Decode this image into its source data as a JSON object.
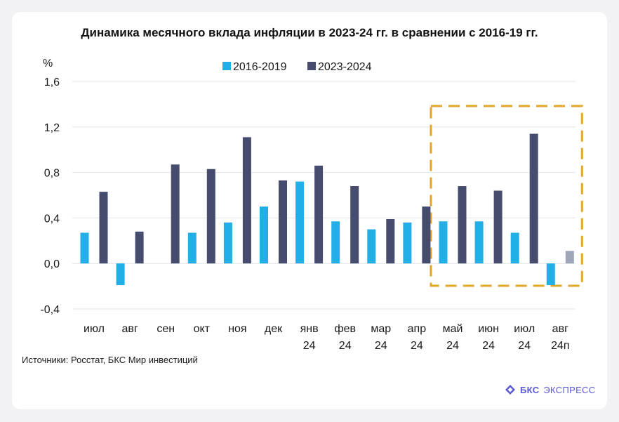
{
  "brand": {
    "name": "БКС",
    "suffix": "ЭКСПРЕСС"
  },
  "source": "Источники: Росстат, БКС Мир инвестиций",
  "chart_data": {
    "type": "bar",
    "title": "Динамика месячного вклада инфляции в 2023-24 гг. в сравнении с 2016-19 гг.",
    "ylabel": "%",
    "ylim": [
      -0.4,
      1.6
    ],
    "yticks": [
      1.6,
      1.2,
      0.8,
      0.4,
      0.0,
      -0.4
    ],
    "ytick_labels": [
      "1,6",
      "1,2",
      "0,8",
      "0,4",
      "0,0",
      "-0,4"
    ],
    "categories": [
      [
        "июл"
      ],
      [
        "авг"
      ],
      [
        "сен"
      ],
      [
        "окт"
      ],
      [
        "ноя"
      ],
      [
        "дек"
      ],
      [
        "янв",
        "24"
      ],
      [
        "фев",
        "24"
      ],
      [
        "мар",
        "24"
      ],
      [
        "апр",
        "24"
      ],
      [
        "май",
        "24"
      ],
      [
        "июн",
        "24"
      ],
      [
        "июл",
        "24"
      ],
      [
        "авг",
        "24п"
      ]
    ],
    "series": [
      {
        "name": "2016-2019",
        "color": "#22aee6",
        "values": [
          0.27,
          -0.19,
          0.0,
          0.27,
          0.36,
          0.5,
          0.72,
          0.37,
          0.3,
          0.36,
          0.37,
          0.37,
          0.27,
          -0.19
        ]
      },
      {
        "name": "2023-2024",
        "color": "#454c6e",
        "values": [
          0.63,
          0.28,
          0.87,
          0.83,
          1.11,
          0.73,
          0.86,
          0.68,
          0.39,
          0.5,
          0.68,
          0.64,
          1.14,
          0.11
        ]
      }
    ],
    "forecast_color": "#9ea6b7",
    "forecast_index": 13,
    "highlight": {
      "from_index": 10,
      "to_index": 13,
      "color": "#e4a52b",
      "style": "dashed"
    },
    "legend": "top-center",
    "grid": true
  }
}
